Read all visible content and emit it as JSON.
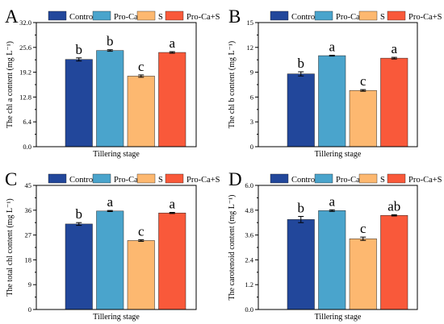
{
  "legend": [
    "Control",
    "Pro-Ca",
    "S",
    "Pro-Ca+S"
  ],
  "colors": [
    "#22479b",
    "#4aa4cc",
    "#fdb870",
    "#f9593a"
  ],
  "chart_data": [
    {
      "type": "bar",
      "panel_label": "A",
      "ylabel": "The chl a content (mg L⁻¹)",
      "xlabel": "Tillering stage",
      "ylim": [
        0,
        32
      ],
      "yticks": [
        "0.0",
        "6.4",
        "12.8",
        "19.2",
        "25.6",
        "32.0"
      ],
      "categories": [
        "Tillering stage"
      ],
      "series": [
        {
          "name": "Control",
          "value": 22.5,
          "error": 0.4,
          "letter": "b"
        },
        {
          "name": "Pro-Ca",
          "value": 24.8,
          "error": 0.2,
          "letter": "b"
        },
        {
          "name": "S",
          "value": 18.2,
          "error": 0.3,
          "letter": "c"
        },
        {
          "name": "Pro-Ca+S",
          "value": 24.3,
          "error": 0.2,
          "letter": "a"
        }
      ]
    },
    {
      "type": "bar",
      "panel_label": "B",
      "ylabel": "The chl b content (mg L⁻¹)",
      "xlabel": "Tillering stage",
      "ylim": [
        0,
        15
      ],
      "yticks": [
        "0",
        "3",
        "6",
        "9",
        "12",
        "15"
      ],
      "categories": [
        "Tillering stage"
      ],
      "series": [
        {
          "name": "Control",
          "value": 8.8,
          "error": 0.25,
          "letter": "b"
        },
        {
          "name": "Pro-Ca",
          "value": 11.0,
          "error": 0.05,
          "letter": "a"
        },
        {
          "name": "S",
          "value": 6.8,
          "error": 0.1,
          "letter": "c"
        },
        {
          "name": "Pro-Ca+S",
          "value": 10.7,
          "error": 0.1,
          "letter": "a"
        }
      ]
    },
    {
      "type": "bar",
      "panel_label": "C",
      "ylabel": "The total chl content (mg L⁻¹)",
      "xlabel": "Tillering stage",
      "ylim": [
        0,
        45
      ],
      "yticks": [
        "0",
        "9",
        "18",
        "27",
        "36",
        "45"
      ],
      "categories": [
        "Tillering stage"
      ],
      "series": [
        {
          "name": "Control",
          "value": 31.0,
          "error": 0.5,
          "letter": "b"
        },
        {
          "name": "Pro-Ca",
          "value": 35.7,
          "error": 0.2,
          "letter": "a"
        },
        {
          "name": "S",
          "value": 25.0,
          "error": 0.3,
          "letter": "c"
        },
        {
          "name": "Pro-Ca+S",
          "value": 35.0,
          "error": 0.2,
          "letter": "a"
        }
      ]
    },
    {
      "type": "bar",
      "panel_label": "D",
      "ylabel": "The carotenoid content (mg L⁻¹)",
      "xlabel": "Tillering stage",
      "ylim": [
        0,
        6
      ],
      "yticks": [
        "0.0",
        "1.2",
        "2.4",
        "3.6",
        "4.8",
        "6.0"
      ],
      "categories": [
        "Tillering stage"
      ],
      "series": [
        {
          "name": "Control",
          "value": 4.35,
          "error": 0.15,
          "letter": "b"
        },
        {
          "name": "Pro-Ca",
          "value": 4.78,
          "error": 0.04,
          "letter": "a"
        },
        {
          "name": "S",
          "value": 3.42,
          "error": 0.08,
          "letter": "c"
        },
        {
          "name": "Pro-Ca+S",
          "value": 4.55,
          "error": 0.03,
          "letter": "ab"
        }
      ]
    }
  ]
}
